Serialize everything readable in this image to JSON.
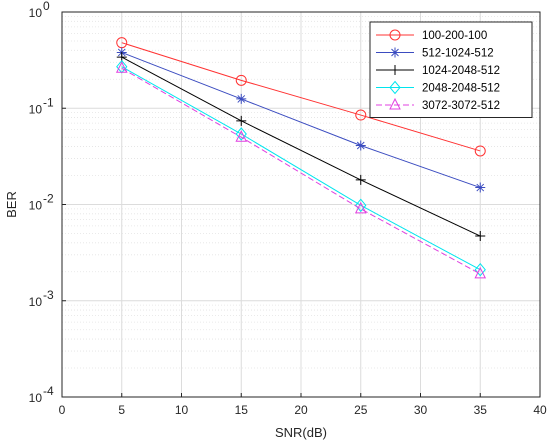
{
  "chart_data": {
    "type": "line",
    "xlabel": "SNR(dB)",
    "ylabel": "BER",
    "xlim": [
      0,
      40
    ],
    "ylim": [
      0.0001,
      1
    ],
    "y_scale": "log",
    "x_ticks": [
      "0",
      "5",
      "10",
      "15",
      "20",
      "25",
      "30",
      "35",
      "40"
    ],
    "y_ticks": [
      {
        "exp": "-4",
        "value": 0.0001
      },
      {
        "exp": "-3",
        "value": 0.001
      },
      {
        "exp": "-2",
        "value": 0.01
      },
      {
        "exp": "-1",
        "value": 0.1
      },
      {
        "exp": "0",
        "value": 1
      }
    ],
    "y_tick_base": "10",
    "grid": true,
    "minor_grid": true,
    "legend_position": "top-right",
    "x": [
      5,
      15,
      25,
      35
    ],
    "series": [
      {
        "name": "100-200-100",
        "values": [
          0.48,
          0.195,
          0.085,
          0.036
        ],
        "color": "#ff3333",
        "marker": "circle",
        "dash": "solid"
      },
      {
        "name": "512-1024-512",
        "values": [
          0.38,
          0.125,
          0.041,
          0.015
        ],
        "color": "#3b4cc0",
        "marker": "asterisk",
        "dash": "solid"
      },
      {
        "name": "1024-2048-512",
        "values": [
          0.34,
          0.074,
          0.018,
          0.0047
        ],
        "color": "#000000",
        "marker": "plus",
        "dash": "solid"
      },
      {
        "name": "2048-2048-512",
        "values": [
          0.27,
          0.054,
          0.0098,
          0.0021
        ],
        "color": "#00e5ee",
        "marker": "diamond",
        "dash": "solid"
      },
      {
        "name": "3072-3072-512",
        "values": [
          0.26,
          0.05,
          0.009,
          0.0019
        ],
        "color": "#e040e0",
        "marker": "triangle",
        "dash": "dashed"
      }
    ]
  }
}
